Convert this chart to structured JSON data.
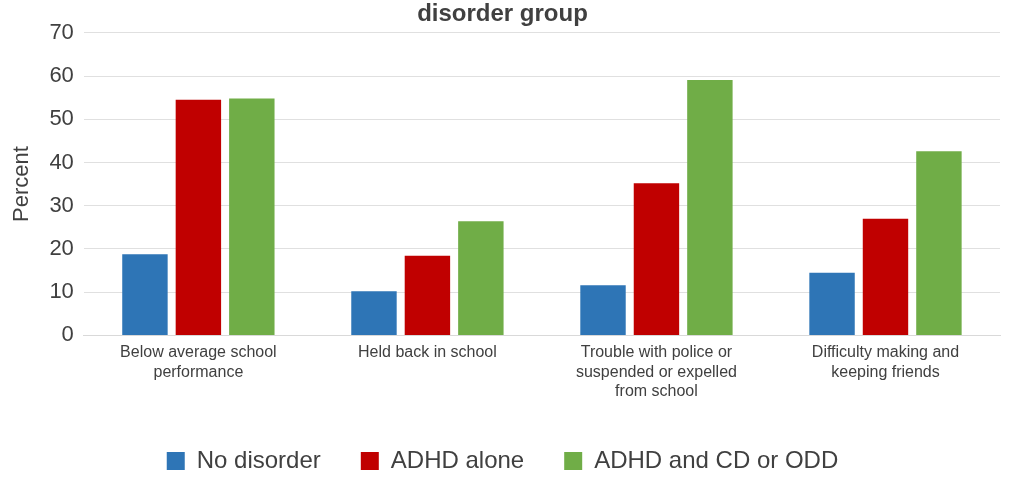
{
  "chart_data": {
    "type": "bar",
    "title": "disorder group",
    "ylabel": "Percent",
    "categories": [
      "Below average school performance",
      "Held back in school",
      "Trouble with police or suspended or expelled from school",
      "Difficulty making and keeping friends"
    ],
    "series": [
      {
        "name": "No disorder",
        "color": "#2e75b6",
        "values": [
          18.8,
          10.2,
          11.6,
          14.5
        ]
      },
      {
        "name": "ADHD alone",
        "color": "#c00000",
        "values": [
          54.5,
          18.4,
          35.2,
          27.0
        ]
      },
      {
        "name": "ADHD and CD or ODD",
        "color": "#70ad47",
        "values": [
          54.8,
          26.4,
          59.1,
          42.6
        ]
      }
    ],
    "ylim": [
      0,
      70
    ],
    "yticks": [
      0,
      10,
      20,
      30,
      40,
      50,
      60,
      70
    ],
    "grid": "y",
    "legend": "bottom"
  }
}
